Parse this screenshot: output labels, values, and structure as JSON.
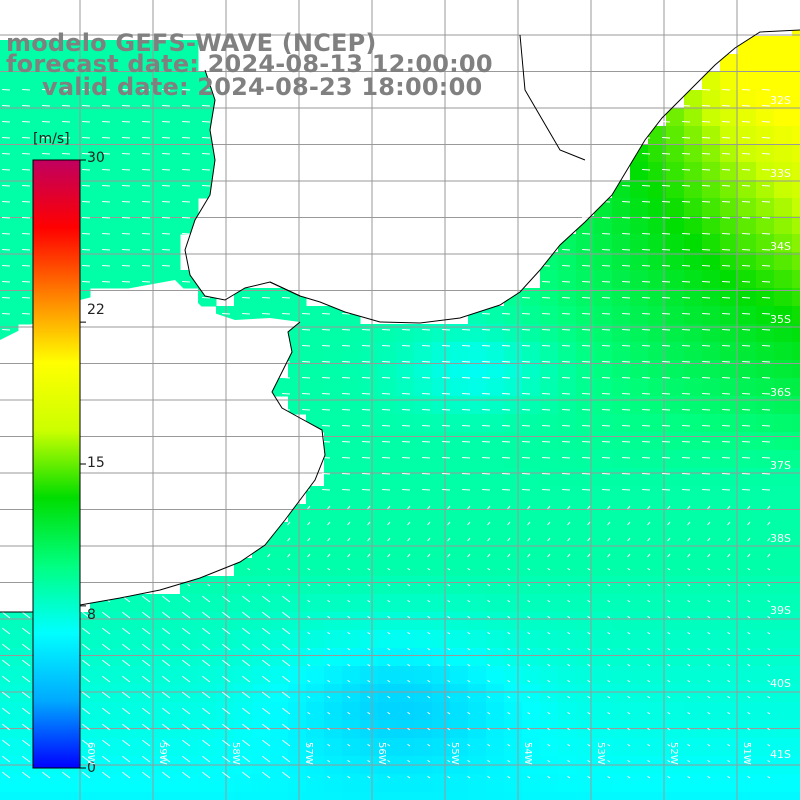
{
  "titles": {
    "model": "modelo GEFS-WAVE (NCEP)",
    "forecast": "forecast date: 2024-08-13 12:00:00",
    "valid": "valid date: 2024-08-23 18:00:00"
  },
  "colorbar": {
    "unit": "[m/s]",
    "ticks": [
      {
        "label": "30",
        "value": 30
      },
      {
        "label": "22",
        "value": 22
      },
      {
        "label": "15",
        "value": 15
      },
      {
        "label": "8",
        "value": 8
      },
      {
        "label": "0",
        "value": 0
      }
    ],
    "colors": [
      "#0000ff",
      "#00aaff",
      "#00ffff",
      "#00ff80",
      "#00dd00",
      "#ccff00",
      "#ffff00",
      "#ff8000",
      "#ff0000",
      "#c00060"
    ]
  },
  "map": {
    "land_color": "#ffffff",
    "grid_color": "#999999",
    "arrow_color": "#ffffff",
    "coast_color": "#000000",
    "lat_labels": [
      "32S",
      "33S",
      "34S",
      "35S",
      "36S",
      "37S",
      "38S",
      "39S",
      "40S",
      "41S"
    ],
    "lon_labels": [
      "60W",
      "59W",
      "58W",
      "57W",
      "56W",
      "55W",
      "54W",
      "53W",
      "52W",
      "51W"
    ]
  }
}
